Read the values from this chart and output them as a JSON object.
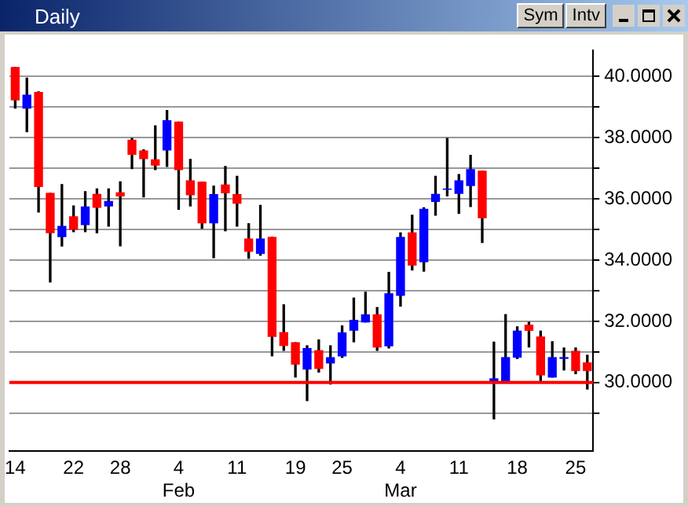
{
  "chart_data": {
    "type": "candlestick",
    "title": "Daily",
    "annotations": [
      "Sym",
      "Intv"
    ],
    "categories": [
      "14",
      null,
      null,
      null,
      null,
      "22",
      null,
      null,
      null,
      "28",
      null,
      null,
      null,
      null,
      "4\nFeb",
      null,
      null,
      null,
      null,
      "11",
      null,
      null,
      null,
      null,
      "19",
      null,
      null,
      null,
      "25",
      null,
      null,
      null,
      null,
      "4\nMar",
      null,
      null,
      null,
      null,
      "11",
      null,
      null,
      null,
      null,
      "18",
      null,
      null,
      null,
      null,
      "25",
      null
    ],
    "ohlc": [
      [
        40.3,
        40.3,
        38.97,
        39.24
      ],
      [
        38.97,
        39.95,
        38.2,
        39.39
      ],
      [
        39.48,
        39.5,
        35.57,
        36.41
      ],
      [
        36.18,
        36.18,
        33.29,
        34.9
      ],
      [
        34.77,
        36.47,
        34.46,
        35.1
      ],
      [
        35.42,
        35.77,
        34.93,
        35.01
      ],
      [
        35.16,
        36.24,
        34.93,
        35.74
      ],
      [
        36.15,
        36.33,
        34.89,
        35.73
      ],
      [
        35.77,
        36.33,
        35.11,
        35.92
      ],
      [
        36.2,
        36.56,
        34.47,
        36.1
      ],
      [
        37.92,
        37.98,
        36.99,
        37.46
      ],
      [
        37.57,
        37.61,
        36.07,
        37.32
      ],
      [
        37.28,
        38.39,
        36.96,
        37.11
      ],
      [
        37.6,
        38.89,
        37.06,
        38.56
      ],
      [
        38.51,
        38.51,
        35.66,
        36.96
      ],
      [
        36.59,
        37.29,
        35.77,
        36.14
      ],
      [
        36.55,
        36.55,
        35.04,
        35.22
      ],
      [
        35.22,
        36.42,
        34.08,
        36.14
      ],
      [
        36.46,
        37.06,
        34.96,
        36.2
      ],
      [
        36.14,
        36.74,
        35.11,
        35.86
      ],
      [
        34.69,
        35.19,
        34.06,
        34.29
      ],
      [
        34.22,
        35.79,
        34.16,
        34.69
      ],
      [
        34.74,
        34.74,
        30.87,
        31.51
      ],
      [
        31.63,
        32.54,
        31.05,
        31.21
      ],
      [
        31.3,
        31.3,
        30.18,
        30.6
      ],
      [
        30.44,
        31.2,
        29.41,
        31.11
      ],
      [
        31.04,
        31.39,
        30.34,
        30.46
      ],
      [
        30.64,
        31.2,
        29.95,
        30.81
      ],
      [
        30.87,
        31.85,
        30.82,
        31.62
      ],
      [
        31.71,
        32.76,
        31.33,
        32.03
      ],
      [
        31.98,
        32.95,
        31.98,
        32.21
      ],
      [
        32.21,
        32.45,
        31.05,
        31.16
      ],
      [
        31.2,
        33.6,
        31.13,
        32.9
      ],
      [
        32.85,
        34.89,
        32.5,
        34.74
      ],
      [
        34.89,
        35.47,
        33.68,
        33.84
      ],
      [
        33.95,
        35.71,
        33.64,
        35.66
      ],
      [
        35.92,
        36.74,
        35.47,
        36.15
      ],
      [
        36.32,
        37.98,
        36.1,
        36.32
      ],
      [
        36.18,
        36.8,
        35.53,
        36.59
      ],
      [
        36.44,
        37.43,
        35.75,
        36.96
      ],
      [
        36.91,
        36.91,
        34.58,
        35.39
      ],
      [
        30.03,
        31.32,
        28.81,
        30.12
      ],
      [
        30.03,
        32.22,
        30.02,
        30.81
      ],
      [
        30.83,
        31.82,
        30.78,
        31.68
      ],
      [
        31.87,
        31.97,
        31.16,
        31.71
      ],
      [
        31.49,
        31.68,
        30.03,
        30.25
      ],
      [
        30.18,
        31.33,
        30.18,
        30.81
      ],
      [
        30.79,
        31.13,
        30.41,
        30.81
      ],
      [
        31.02,
        31.13,
        30.29,
        30.39
      ],
      [
        30.64,
        30.89,
        29.79,
        30.39
      ]
    ],
    "colors": [
      "#ff0000",
      "#0000ff",
      "#ff0000",
      "#ff0000",
      "#0000ff",
      "#ff0000",
      "#0000ff",
      "#ff0000",
      "#0000ff",
      "#ff0000",
      "#ff0000",
      "#ff0000",
      "#ff0000",
      "#0000ff",
      "#ff0000",
      "#ff0000",
      "#ff0000",
      "#0000ff",
      "#ff0000",
      "#ff0000",
      "#ff0000",
      "#0000ff",
      "#ff0000",
      "#ff0000",
      "#ff0000",
      "#0000ff",
      "#ff0000",
      "#0000ff",
      "#0000ff",
      "#0000ff",
      "#0000ff",
      "#ff0000",
      "#0000ff",
      "#0000ff",
      "#ff0000",
      "#0000ff",
      "#0000ff",
      "#0000ff",
      "#0000ff",
      "#0000ff",
      "#ff0000",
      "#0000ff",
      "#0000ff",
      "#0000ff",
      "#ff0000",
      "#ff0000",
      "#0000ff",
      "#0000ff",
      "#ff0000",
      "#ff0000"
    ],
    "ylim": [
      27.75,
      40.85
    ],
    "yticks": [
      {
        "value": 29,
        "label": null
      },
      {
        "value": 30,
        "label": "30.0000"
      },
      {
        "value": 31,
        "label": null
      },
      {
        "value": 32,
        "label": "32.0000"
      },
      {
        "value": 33,
        "label": null
      },
      {
        "value": 34,
        "label": "34.0000"
      },
      {
        "value": 35,
        "label": null
      },
      {
        "value": 36,
        "label": "36.0000"
      },
      {
        "value": 37,
        "label": null
      },
      {
        "value": 38,
        "label": "38.0000"
      },
      {
        "value": 39,
        "label": null
      },
      {
        "value": 40,
        "label": "40.0000"
      }
    ],
    "ref_lines": [
      {
        "axis": "y",
        "value": 30,
        "color": "#ff0000"
      }
    ],
    "grid": "y"
  }
}
